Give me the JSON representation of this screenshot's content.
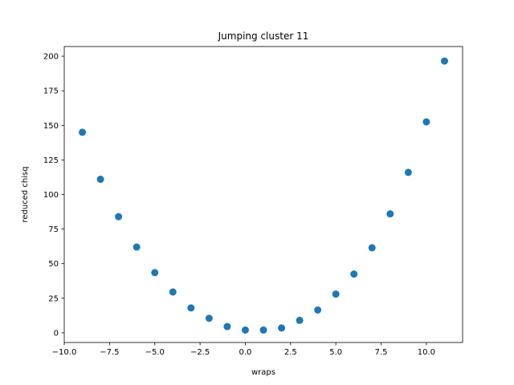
{
  "chart_data": {
    "type": "scatter",
    "title": "Jumping cluster 11",
    "xlabel": "wraps",
    "ylabel": "reduced chisq",
    "xlim": [
      -10.0,
      12.0
    ],
    "ylim": [
      -7.0,
      207.0
    ],
    "xticks": [
      -10.0,
      -7.5,
      -5.0,
      -2.5,
      0.0,
      2.5,
      5.0,
      7.5,
      10.0
    ],
    "xtick_labels": [
      "−10.0",
      "−7.5",
      "−5.0",
      "−2.5",
      "0.0",
      "2.5",
      "5.0",
      "7.5",
      "10.0"
    ],
    "yticks": [
      0,
      25,
      50,
      75,
      100,
      125,
      150,
      175,
      200
    ],
    "ytick_labels": [
      "0",
      "25",
      "50",
      "75",
      "100",
      "125",
      "150",
      "175",
      "200"
    ],
    "grid": false,
    "marker_color": "#1f77b4",
    "x": [
      -9,
      -8,
      -7,
      -6,
      -5,
      -4,
      -3,
      -2,
      -1,
      0,
      1,
      2,
      3,
      4,
      5,
      6,
      7,
      8,
      9,
      10,
      11
    ],
    "y": [
      145,
      111,
      84,
      62,
      43.5,
      29.5,
      18,
      10.5,
      4.5,
      2,
      2,
      3.5,
      9,
      16.5,
      28,
      42.5,
      61.5,
      86,
      116,
      152.5,
      196.5
    ]
  }
}
